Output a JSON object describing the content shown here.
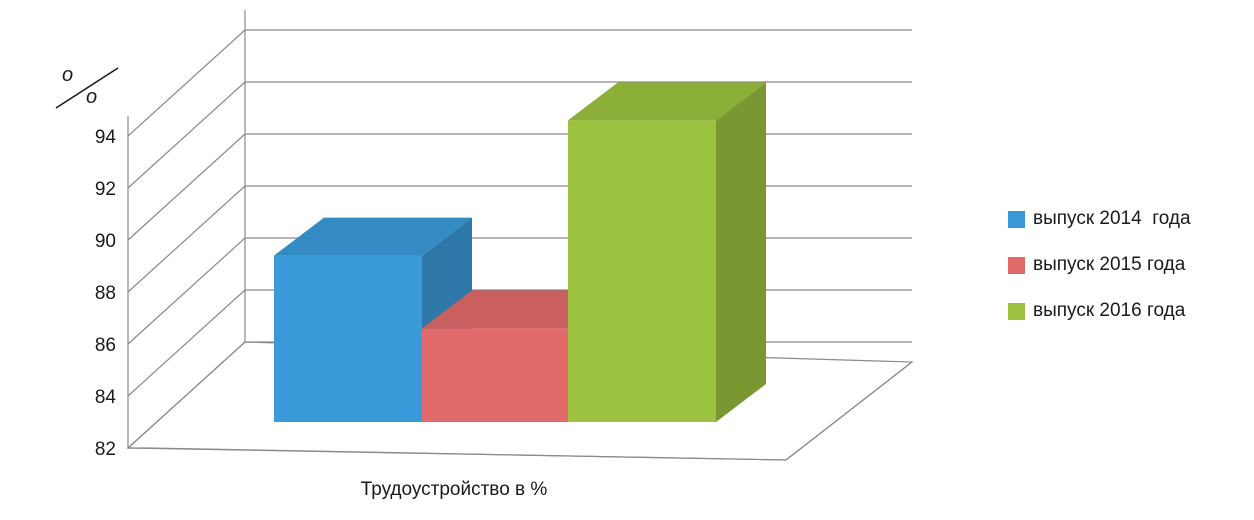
{
  "chart_data": {
    "type": "bar",
    "style": "3d-clustered",
    "xlabel": "Трудоустройство в %",
    "ylabel_top": "%",
    "categories": [
      "Трудоустройство в %"
    ],
    "series": [
      {
        "name": "выпуск 2014  года",
        "values": [
          89.4
        ],
        "color": "#3a9ad9"
      },
      {
        "name": "выпуск 2015 года",
        "values": [
          86.6
        ],
        "color": "#e06a6a"
      },
      {
        "name": "выпуск 2016 года",
        "values": [
          94.6
        ],
        "color": "#9cc23f"
      }
    ],
    "ylim": [
      82,
      94
    ],
    "yticks": [
      "82",
      "84",
      "86",
      "88",
      "90",
      "92",
      "94"
    ],
    "grid": true,
    "legend_position": "right"
  },
  "axis_unit": {
    "top": "о",
    "bottom": "о"
  }
}
